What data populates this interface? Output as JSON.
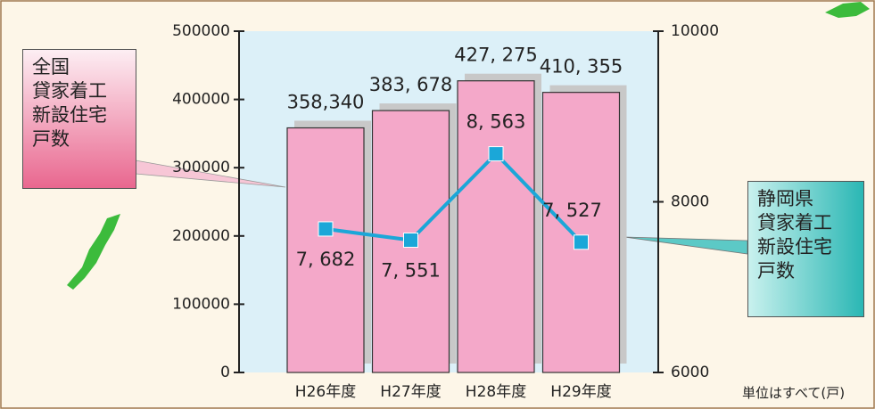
{
  "chart_data": {
    "type": "bar_line",
    "categories": [
      "H26年度",
      "H27年度",
      "H28年度",
      "H29年度"
    ],
    "series": [
      {
        "name": "全国\n貸家着工\n新設住宅\n戸数",
        "type": "bar",
        "color": "#f4a8c9",
        "values": [
          358340,
          383678,
          427275,
          410355
        ],
        "value_labels": [
          "358,340",
          "383, 678",
          "427, 275",
          "410, 355"
        ]
      },
      {
        "name": "静岡県\n貸家着工\n新設住宅\n戸数",
        "type": "line",
        "axis": "y2",
        "color": "#1ba7d8",
        "values": [
          7682,
          7551,
          8563,
          7527
        ],
        "value_labels": [
          "7, 682",
          "7, 551",
          "8, 563",
          "7, 527"
        ]
      }
    ],
    "ylim": [
      0,
      500000
    ],
    "yticks": [
      0,
      100000,
      200000,
      300000,
      400000,
      500000
    ],
    "y2lim": [
      6000,
      10000
    ],
    "y2ticks": [
      6000,
      8000,
      10000
    ],
    "annotation": "単位はすべて(戸)"
  }
}
